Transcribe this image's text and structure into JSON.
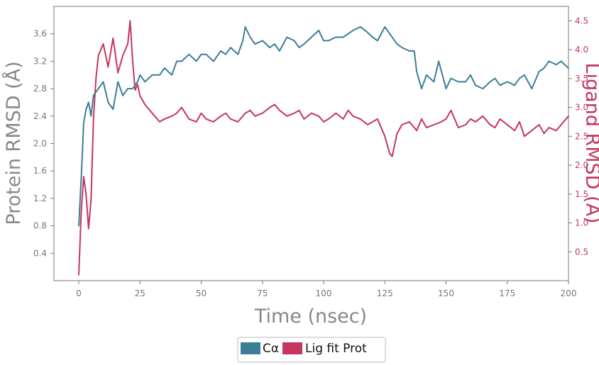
{
  "chart_data": {
    "type": "line",
    "title": "",
    "xlabel": "Time (nsec)",
    "ylabel_left": "Protein RMSD (Å)",
    "ylabel_right": "Ligand RMSD (Å)",
    "xlim": [
      0,
      200
    ],
    "ylim_left": [
      0,
      4.0
    ],
    "ylim_right": [
      0,
      4.75
    ],
    "x_ticks": [
      "0",
      "25",
      "50",
      "75",
      "100",
      "125",
      "150",
      "175",
      "200"
    ],
    "y_left_ticks": [
      "0.4",
      "0.8",
      "1.2",
      "1.6",
      "2.0",
      "2.4",
      "2.8",
      "3.2",
      "3.6"
    ],
    "y_right_ticks": [
      "0.5",
      "1.0",
      "1.5",
      "2.0",
      "2.5",
      "3.0",
      "3.5",
      "4.0",
      "4.5"
    ],
    "grid": false,
    "legend_position": "bottom-center",
    "series": [
      {
        "name": "Cα",
        "axis": "left",
        "color": "#3c7d98",
        "x": [
          0,
          1,
          2,
          3,
          4,
          5,
          6,
          8,
          10,
          12,
          14,
          16,
          18,
          20,
          22,
          24,
          25,
          27,
          30,
          33,
          35,
          38,
          40,
          42,
          45,
          48,
          50,
          52,
          55,
          58,
          60,
          62,
          65,
          67,
          68,
          70,
          72,
          75,
          78,
          80,
          82,
          85,
          88,
          90,
          92,
          95,
          98,
          100,
          102,
          105,
          108,
          110,
          112,
          115,
          117,
          120,
          122,
          125,
          127,
          130,
          132,
          135,
          137,
          138,
          140,
          142,
          145,
          147,
          150,
          152,
          155,
          158,
          160,
          162,
          165,
          168,
          170,
          172,
          175,
          178,
          180,
          182,
          185,
          188,
          190,
          192,
          195,
          197,
          200
        ],
        "values": [
          0.8,
          1.5,
          2.3,
          2.5,
          2.6,
          2.4,
          2.7,
          2.8,
          2.9,
          2.6,
          2.5,
          2.9,
          2.7,
          2.8,
          2.8,
          2.9,
          3.0,
          2.9,
          3.0,
          3.0,
          3.1,
          3.0,
          3.2,
          3.2,
          3.3,
          3.2,
          3.3,
          3.3,
          3.2,
          3.35,
          3.3,
          3.4,
          3.3,
          3.5,
          3.7,
          3.55,
          3.45,
          3.5,
          3.4,
          3.45,
          3.35,
          3.55,
          3.5,
          3.4,
          3.45,
          3.55,
          3.65,
          3.5,
          3.5,
          3.55,
          3.55,
          3.6,
          3.65,
          3.7,
          3.65,
          3.55,
          3.5,
          3.7,
          3.6,
          3.45,
          3.4,
          3.35,
          3.35,
          3.05,
          2.8,
          3.0,
          2.9,
          3.2,
          2.8,
          2.95,
          2.9,
          2.9,
          3.0,
          2.85,
          2.8,
          2.9,
          2.95,
          2.85,
          2.9,
          2.85,
          2.95,
          3.0,
          2.8,
          3.05,
          3.1,
          3.2,
          3.15,
          3.2,
          3.1
        ]
      },
      {
        "name": "Lig fit Prot",
        "axis": "right",
        "color": "#c4365f",
        "x": [
          0,
          1,
          2,
          3,
          4,
          5,
          6,
          7,
          8,
          10,
          12,
          14,
          16,
          18,
          20,
          21,
          22,
          23,
          24,
          25,
          27,
          30,
          33,
          35,
          38,
          40,
          42,
          45,
          48,
          50,
          52,
          55,
          58,
          60,
          62,
          65,
          68,
          70,
          72,
          75,
          78,
          80,
          82,
          85,
          88,
          90,
          92,
          95,
          98,
          100,
          102,
          105,
          108,
          110,
          112,
          115,
          118,
          120,
          122,
          125,
          127,
          128,
          130,
          132,
          135,
          138,
          140,
          142,
          145,
          148,
          150,
          152,
          155,
          158,
          160,
          162,
          165,
          168,
          170,
          172,
          175,
          178,
          180,
          182,
          185,
          188,
          190,
          192,
          195,
          197,
          200
        ],
        "values": [
          0.1,
          1.2,
          1.8,
          1.5,
          0.9,
          1.4,
          2.8,
          3.5,
          3.9,
          4.1,
          3.7,
          4.2,
          3.6,
          3.9,
          4.1,
          4.5,
          3.8,
          3.3,
          3.4,
          3.2,
          3.05,
          2.9,
          2.75,
          2.8,
          2.85,
          2.9,
          3.0,
          2.8,
          2.75,
          2.9,
          2.8,
          2.75,
          2.85,
          2.9,
          2.8,
          2.75,
          2.9,
          2.95,
          2.85,
          2.9,
          3.0,
          3.05,
          2.95,
          2.85,
          2.9,
          2.95,
          2.8,
          2.9,
          2.85,
          2.75,
          2.8,
          2.9,
          2.8,
          2.95,
          2.85,
          2.8,
          2.7,
          2.75,
          2.8,
          2.5,
          2.2,
          2.15,
          2.55,
          2.7,
          2.75,
          2.6,
          2.8,
          2.65,
          2.7,
          2.75,
          2.8,
          2.95,
          2.65,
          2.7,
          2.8,
          2.75,
          2.85,
          2.7,
          2.65,
          2.8,
          2.7,
          2.6,
          2.75,
          2.5,
          2.6,
          2.7,
          2.55,
          2.65,
          2.6,
          2.7,
          2.85
        ]
      }
    ]
  }
}
